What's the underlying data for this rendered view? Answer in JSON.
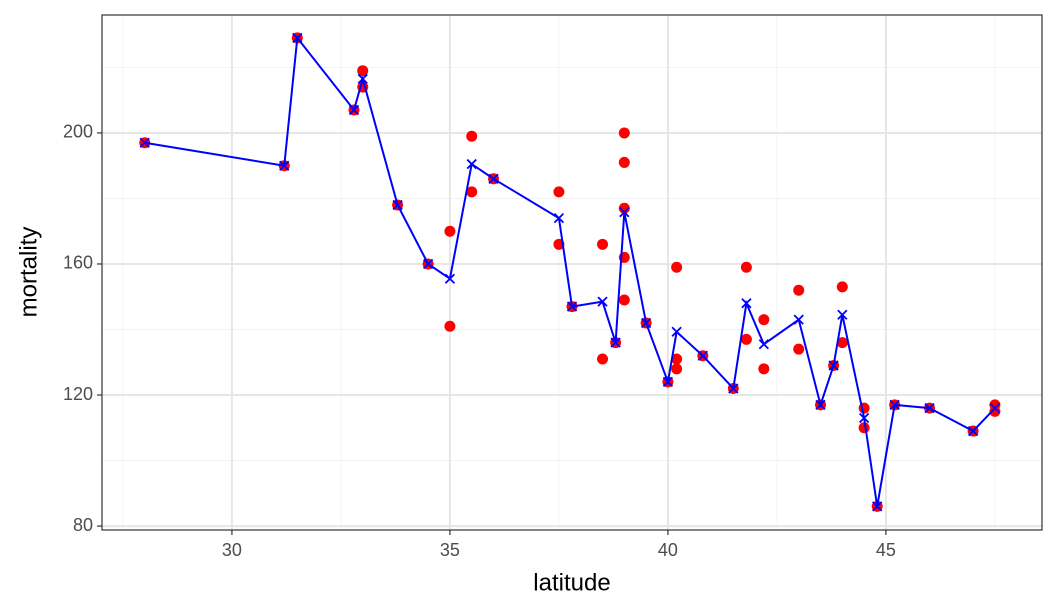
{
  "chart_data": {
    "type": "scatter",
    "x_label": "latitude",
    "y_label": "mortality",
    "xlim": [
      27.02,
      48.58
    ],
    "ylim": [
      78.8,
      236
    ],
    "xticks": [
      30,
      35,
      40,
      45
    ],
    "yticks": [
      80,
      120,
      160,
      200
    ],
    "x_minor_grid": [
      27.5,
      32.5,
      37.5,
      42.5,
      47.5
    ],
    "y_minor_grid": [
      100,
      140,
      180,
      220
    ],
    "grid": true,
    "series": [
      {
        "kind": "points",
        "color": "#ff0000",
        "x": [
          28,
          31.2,
          31.5,
          32.8,
          33,
          33,
          33.8,
          34.5,
          35,
          35,
          35.5,
          35.5,
          36,
          37.5,
          37.5,
          37.8,
          38.5,
          38.5,
          38.8,
          39,
          39,
          39,
          39,
          39,
          39.5,
          40,
          40.2,
          40.2,
          40.2,
          40.8,
          41.5,
          41.8,
          41.8,
          42.2,
          42.2,
          43,
          43,
          43.5,
          43.8,
          44,
          44,
          44.5,
          44.5,
          44.8,
          45.2,
          46,
          47,
          47.5,
          47.5
        ],
        "values": [
          197,
          190,
          229,
          207,
          219,
          214,
          178,
          160,
          170,
          141,
          199,
          182,
          186,
          182,
          166,
          147,
          166,
          131,
          136,
          200,
          191,
          177,
          162,
          149,
          142,
          124,
          159,
          131,
          128,
          132,
          122,
          159,
          137,
          143,
          128,
          152,
          134,
          117,
          129,
          153,
          136,
          116,
          110,
          86,
          117,
          116,
          109,
          117,
          115
        ]
      },
      {
        "kind": "line-x",
        "color": "#0000ff",
        "x": [
          28,
          31.2,
          31.5,
          32.8,
          33,
          33.8,
          34.5,
          35,
          35.5,
          36,
          37.5,
          37.8,
          38.5,
          38.8,
          39,
          39.5,
          40,
          40.2,
          40.8,
          41.5,
          41.8,
          42.2,
          43,
          43.5,
          43.8,
          44,
          44.5,
          44.8,
          45.2,
          46,
          47,
          47.5
        ],
        "values": [
          197,
          190,
          229,
          207,
          216.5,
          178,
          160,
          155.5,
          190.5,
          186,
          174,
          147,
          148.5,
          136,
          175.8,
          142,
          124,
          139.3,
          132,
          122,
          148,
          135.5,
          143,
          117,
          129,
          144.5,
          113,
          86,
          117,
          116,
          109,
          116
        ]
      }
    ]
  }
}
